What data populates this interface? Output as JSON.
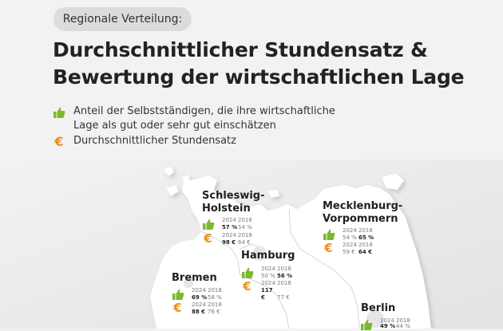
{
  "header": {
    "pill": "Regionale Verteilung:",
    "title_line1": "Durchschnittlicher Stundensatz &",
    "title_line2": "Bewertung der wirtschaftlichen Lage"
  },
  "legend": {
    "thumb_line1": "Anteil der Selbstständigen, die ihre wirtschaftliche",
    "thumb_line2": "Lage als gut oder sehr gut einschätzen",
    "euro": "Durchschnittlicher Stundensatz"
  },
  "colors": {
    "thumb": "#7cb82f",
    "euro": "#e8911d",
    "background": "#f2f2f3",
    "land": "#ffffff"
  },
  "icons": {
    "thumb": "thumbs-up-icon",
    "euro": "euro-icon"
  },
  "year_labels": {
    "current": "2024",
    "previous": "2018"
  },
  "regions": {
    "sh": {
      "name_line1": "Schleswig-",
      "name_line2": "Holstein",
      "share_2024": "57 %",
      "share_2018": "54 %",
      "rate_2024": "98 €",
      "rate_2018": "64 €"
    },
    "mv": {
      "name_line1": "Mecklenburg-",
      "name_line2": "Vorpommern",
      "share_2024": "54 %",
      "share_2018": "65 %",
      "rate_2024": "59 €",
      "rate_2018": "64 €"
    },
    "hh": {
      "name": "Hamburg",
      "share_2024": "50 %",
      "share_2018": "56 %",
      "rate_2024": "117 €",
      "rate_2018": "77 €"
    },
    "hb": {
      "name": "Bremen",
      "share_2024": "69 %",
      "share_2018": "58 %",
      "rate_2024": "88 €",
      "rate_2018": "76 €"
    },
    "be": {
      "name": "Berlin",
      "share_2024": "49 %",
      "share_2018": "44 %"
    }
  }
}
